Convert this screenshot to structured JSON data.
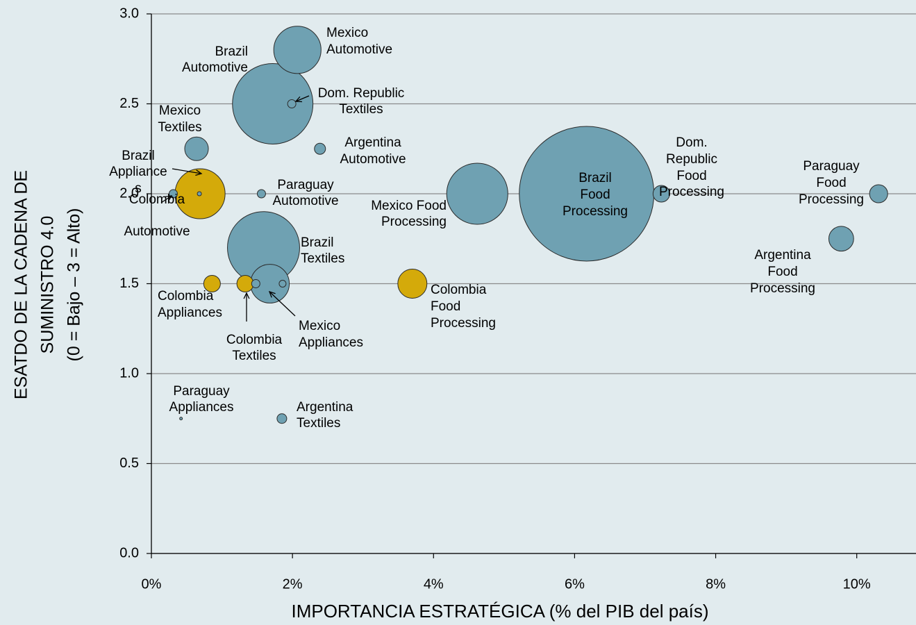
{
  "chart_data": {
    "type": "bubble",
    "xlabel": "IMPORTANCIA ESTRATÉGICA (% del PIB del país)",
    "ylabel": [
      "ESATDO DE LA CADENA DE",
      "SUMINISTRO 4.0",
      "(0 = Bajo – 3 = Alto)"
    ],
    "xlim": [
      0,
      10.84
    ],
    "ylim": [
      0,
      3
    ],
    "xticks": [
      {
        "value": 0,
        "label": "0%"
      },
      {
        "value": 2,
        "label": "2%"
      },
      {
        "value": 4,
        "label": "4%"
      },
      {
        "value": 6,
        "label": "6%"
      },
      {
        "value": 8,
        "label": "8%"
      },
      {
        "value": 10,
        "label": "10%"
      }
    ],
    "yticks": [
      {
        "value": 0,
        "label": "0.0"
      },
      {
        "value": 0.5,
        "label": "0.5"
      },
      {
        "value": 1,
        "label": "1.0"
      },
      {
        "value": 1.5,
        "label": "1.5"
      },
      {
        "value": 2,
        "label": "2.0"
      },
      {
        "value": 2.5,
        "label": "2.5"
      },
      {
        "value": 3,
        "label": "3.0"
      }
    ],
    "grid": true,
    "points": [
      {
        "x": 6.17,
        "y": 2.0,
        "size": 94,
        "color": "#6fa1b2",
        "label": [
          "Brazil",
          "Food",
          "Processing"
        ]
      },
      {
        "x": 4.62,
        "y": 2.0,
        "size": 19.4,
        "color": "#6fa1b2",
        "label": [
          "Mexico Food",
          "Processing"
        ]
      },
      {
        "x": 1.72,
        "y": 2.5,
        "size": 33.6,
        "color": "#6fa1b2",
        "label": [
          "Brazil",
          "Automotive"
        ]
      },
      {
        "x": 2.07,
        "y": 2.8,
        "size": 11.6,
        "color": "#6fa1b2",
        "label": [
          "Mexico",
          "Automotive"
        ]
      },
      {
        "x": 1.59,
        "y": 1.7,
        "size": 27,
        "color": "#6fa1b2",
        "label": [
          "Brazil",
          "Textiles"
        ]
      },
      {
        "x": 1.68,
        "y": 1.5,
        "size": 7.8,
        "color": "#6fa1b2",
        "label": [
          "Mexico",
          "Appliances"
        ]
      },
      {
        "x": 0.69,
        "y": 2.0,
        "size": 13,
        "color": "#d4aa0a",
        "label": [
          "Brazil",
          "Appliance",
          "s"
        ]
      },
      {
        "x": 3.7,
        "y": 1.5,
        "size": 4.4,
        "color": "#d4aa0a",
        "label": [
          "Colombia",
          "Food",
          "Processing"
        ]
      },
      {
        "x": 9.78,
        "y": 1.75,
        "size": 3.2,
        "color": "#6fa1b2",
        "label": [
          "Argentina",
          "Food",
          "Processing"
        ]
      },
      {
        "x": 10.31,
        "y": 2.0,
        "size": 1.7,
        "color": "#6fa1b2",
        "label": [
          "Paraguay",
          "Food",
          "Processing"
        ]
      },
      {
        "x": 0.64,
        "y": 2.25,
        "size": 2.9,
        "color": "#6fa1b2",
        "label": [
          "Mexico",
          "Textiles"
        ]
      },
      {
        "x": 7.23,
        "y": 2.0,
        "size": 1.44,
        "color": "#6fa1b2",
        "label": [
          "Dom.",
          "Republic",
          "Food",
          "Processing"
        ]
      },
      {
        "x": 0.86,
        "y": 1.5,
        "size": 1.44,
        "color": "#d4aa0a",
        "label": [
          "Colombia",
          "Appliances"
        ]
      },
      {
        "x": 1.33,
        "y": 1.5,
        "size": 1.44,
        "color": "#d4aa0a",
        "label": [
          "Colombia",
          "Textiles"
        ]
      },
      {
        "x": 2.39,
        "y": 2.25,
        "size": 0.64,
        "color": "#6fa1b2",
        "label": [
          "Argentina",
          "Automotive"
        ]
      },
      {
        "x": 1.85,
        "y": 0.75,
        "size": 0.49,
        "color": "#6fa1b2",
        "label": [
          "Argentina",
          "Textiles"
        ]
      },
      {
        "x": 0.31,
        "y": 2.0,
        "size": 0.36,
        "color": "#6fa1b2",
        "label": [
          "Colombia",
          "Automotive"
        ]
      },
      {
        "x": 1.56,
        "y": 2.0,
        "size": 0.36,
        "color": "#6fa1b2",
        "label": [
          "Paraguay",
          "Automotive"
        ]
      },
      {
        "x": 1.99,
        "y": 2.5,
        "size": 0.36,
        "color": "#6fa1b2",
        "label": [
          "Dom. Republic",
          "Textiles"
        ]
      },
      {
        "x": 0.68,
        "y": 2.0,
        "size": 0.09,
        "color": "#6fa1b2"
      },
      {
        "x": 1.48,
        "y": 1.5,
        "size": 0.36,
        "color": "#6fa1b2"
      },
      {
        "x": 1.86,
        "y": 1.5,
        "size": 0.25,
        "color": "#6fa1b2"
      },
      {
        "x": 0.42,
        "y": 0.75,
        "size": 0.04,
        "color": "#6fa1b2",
        "label": [
          "Paraguay",
          "Appliances"
        ]
      }
    ]
  }
}
